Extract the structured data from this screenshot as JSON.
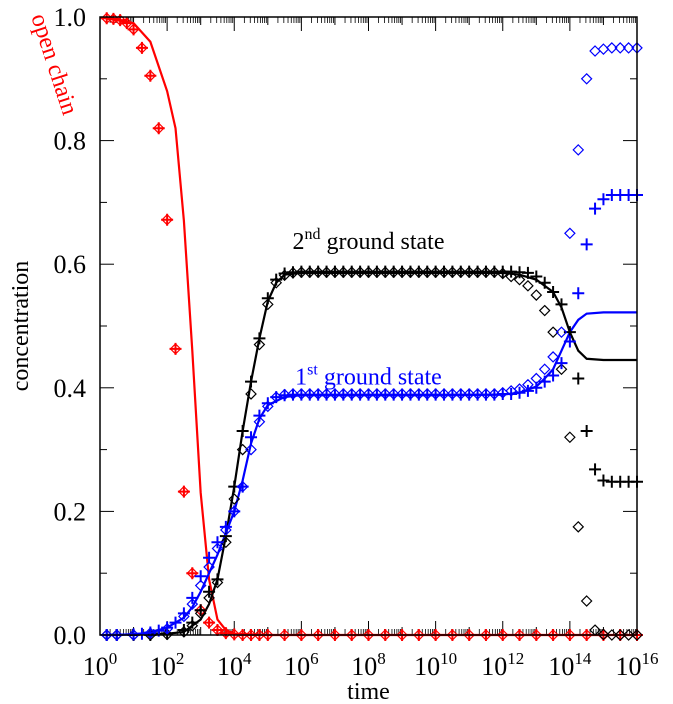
{
  "chart_data": {
    "type": "line",
    "title": "",
    "xlabel": "time",
    "ylabel": "concentration",
    "x_scale": "log",
    "xlim": [
      1,
      1e+16
    ],
    "ylim": [
      0,
      1.0
    ],
    "x_ticks": [
      {
        "base": "10",
        "exp": "0"
      },
      {
        "base": "10",
        "exp": "2"
      },
      {
        "base": "10",
        "exp": "4"
      },
      {
        "base": "10",
        "exp": "6"
      },
      {
        "base": "10",
        "exp": "8"
      },
      {
        "base": "10",
        "exp": "10"
      },
      {
        "base": "10",
        "exp": "12"
      },
      {
        "base": "10",
        "exp": "14"
      },
      {
        "base": "10",
        "exp": "16"
      }
    ],
    "y_ticks": [
      "0.0",
      "0.2",
      "0.4",
      "0.6",
      "0.8",
      "1.0"
    ],
    "y_tick_values": [
      0,
      0.2,
      0.4,
      0.6,
      0.8,
      1.0
    ],
    "grid": false,
    "annotations": [
      {
        "id": "open",
        "text": "open chain",
        "color": "#ff0000",
        "x": 300,
        "y": 0.9,
        "rotate": 72
      },
      {
        "id": "second",
        "pre": "2",
        "sup": "nd",
        "text": " ground state",
        "color": "#000000",
        "x": 100000000.0,
        "y": 0.625
      },
      {
        "id": "first",
        "pre": "1",
        "sup": "st",
        "text": " ground state",
        "color": "#0000ff",
        "x": 100000000.0,
        "y": 0.405
      }
    ],
    "series": [
      {
        "id": "open-line",
        "color": "#ff0000",
        "kind": "line",
        "x_log": [
          0.2,
          1,
          1.5,
          2,
          2.25,
          2.5,
          2.75,
          3,
          3.25,
          3.5,
          3.75,
          4,
          4.5,
          5,
          6,
          8,
          10,
          12,
          14,
          16
        ],
        "y": [
          0.998,
          0.99,
          0.96,
          0.88,
          0.82,
          0.67,
          0.46,
          0.23,
          0.09,
          0.025,
          0.008,
          0.002,
          0.001,
          0,
          0,
          0,
          0,
          0,
          0,
          0
        ]
      },
      {
        "id": "second-line",
        "color": "#000000",
        "kind": "line",
        "x_log": [
          0.2,
          2,
          2.5,
          3,
          3.25,
          3.5,
          3.75,
          4,
          4.25,
          4.5,
          4.75,
          5,
          5.25,
          5.5,
          6,
          8,
          10,
          12,
          12.5,
          13,
          13.5,
          13.75,
          14,
          14.25,
          14.5,
          15,
          16
        ],
        "y": [
          0,
          0.002,
          0.005,
          0.025,
          0.05,
          0.09,
          0.16,
          0.24,
          0.33,
          0.41,
          0.48,
          0.54,
          0.57,
          0.583,
          0.586,
          0.586,
          0.586,
          0.586,
          0.583,
          0.575,
          0.555,
          0.53,
          0.49,
          0.46,
          0.447,
          0.445,
          0.445
        ]
      },
      {
        "id": "first-line",
        "color": "#0000ff",
        "kind": "line",
        "x_log": [
          0.2,
          1,
          1.5,
          2,
          2.5,
          2.75,
          3,
          3.25,
          3.5,
          3.75,
          4,
          4.25,
          4.5,
          4.75,
          5,
          5.5,
          6,
          8,
          10,
          12,
          12.5,
          13,
          13.25,
          13.5,
          13.75,
          14,
          14.25,
          14.5,
          15,
          16
        ],
        "y": [
          0,
          0.001,
          0.004,
          0.012,
          0.028,
          0.045,
          0.07,
          0.1,
          0.13,
          0.165,
          0.2,
          0.25,
          0.31,
          0.35,
          0.372,
          0.385,
          0.388,
          0.388,
          0.388,
          0.389,
          0.392,
          0.402,
          0.415,
          0.43,
          0.46,
          0.49,
          0.51,
          0.52,
          0.522,
          0.522
        ]
      },
      {
        "id": "open-markers",
        "color": "#ff0000",
        "kind": "both",
        "x_log": [
          0.2,
          0.4,
          0.6,
          0.8,
          1,
          1.25,
          1.5,
          1.75,
          2,
          2.25,
          2.5,
          2.75,
          3,
          3.25,
          3.5,
          3.75,
          4,
          4.25,
          4.5,
          4.75,
          5,
          5.5,
          6,
          6.5,
          7,
          7.5,
          8,
          8.5,
          9,
          9.5,
          10,
          10.5,
          11,
          11.5,
          12,
          12.5,
          13,
          13.5,
          14,
          14.5,
          15,
          15.5,
          16
        ],
        "y": [
          0.998,
          0.997,
          0.995,
          0.99,
          0.98,
          0.95,
          0.905,
          0.82,
          0.672,
          0.463,
          0.232,
          0.1,
          0.04,
          0.02,
          0.008,
          0.003,
          0.001,
          0,
          0,
          0,
          0,
          0,
          0,
          0,
          0,
          0,
          0,
          0,
          0,
          0,
          0,
          0,
          0,
          0,
          0,
          0,
          0,
          0,
          0,
          0,
          0,
          0,
          0
        ]
      },
      {
        "id": "second-plus",
        "color": "#000000",
        "kind": "plus",
        "x_log": [
          0.2,
          0.5,
          1,
          1.5,
          2,
          2.5,
          2.75,
          3,
          3.25,
          3.5,
          3.75,
          4,
          4.25,
          4.5,
          4.75,
          5,
          5.25,
          5.5,
          5.75,
          6,
          6.25,
          6.5,
          6.75,
          7,
          7.25,
          7.5,
          7.75,
          8,
          8.25,
          8.5,
          8.75,
          9,
          9.25,
          9.5,
          9.75,
          10,
          10.25,
          10.5,
          10.75,
          11,
          11.25,
          11.5,
          11.75,
          12,
          12.25,
          12.5,
          12.75,
          13,
          13.25,
          13.5,
          13.75,
          14,
          14.25,
          14.5,
          14.75,
          15,
          15.25,
          15.5,
          15.75,
          16
        ],
        "y": [
          0,
          0,
          0,
          0,
          0.002,
          0.008,
          0.02,
          0.04,
          0.07,
          0.09,
          0.16,
          0.24,
          0.33,
          0.41,
          0.48,
          0.545,
          0.575,
          0.585,
          0.587,
          0.588,
          0.588,
          0.588,
          0.588,
          0.588,
          0.588,
          0.588,
          0.588,
          0.588,
          0.588,
          0.588,
          0.588,
          0.588,
          0.588,
          0.588,
          0.588,
          0.588,
          0.588,
          0.588,
          0.588,
          0.588,
          0.588,
          0.588,
          0.588,
          0.588,
          0.588,
          0.587,
          0.586,
          0.58,
          0.57,
          0.555,
          0.535,
          0.49,
          0.415,
          0.33,
          0.268,
          0.25,
          0.248,
          0.248,
          0.248,
          0.248
        ]
      },
      {
        "id": "second-diamond",
        "color": "#000000",
        "kind": "diamond",
        "x_log": [
          0.2,
          0.5,
          1,
          1.5,
          2,
          2.5,
          2.75,
          3,
          3.25,
          3.5,
          3.75,
          4,
          4.25,
          4.5,
          4.75,
          5,
          5.25,
          5.5,
          5.75,
          6,
          6.25,
          6.5,
          6.75,
          7,
          7.25,
          7.5,
          7.75,
          8,
          8.25,
          8.5,
          8.75,
          9,
          9.25,
          9.5,
          9.75,
          10,
          10.25,
          10.5,
          10.75,
          11,
          11.25,
          11.5,
          11.75,
          12,
          12.25,
          12.5,
          12.75,
          13,
          13.25,
          13.5,
          13.75,
          14,
          14.25,
          14.5,
          14.75,
          15,
          15.25,
          15.5,
          15.75,
          16
        ],
        "y": [
          0,
          0,
          0,
          0,
          0.001,
          0.005,
          0.015,
          0.035,
          0.06,
          0.085,
          0.15,
          0.22,
          0.3,
          0.39,
          0.47,
          0.535,
          0.57,
          0.582,
          0.586,
          0.587,
          0.587,
          0.587,
          0.587,
          0.587,
          0.587,
          0.587,
          0.587,
          0.587,
          0.587,
          0.587,
          0.587,
          0.587,
          0.587,
          0.587,
          0.587,
          0.587,
          0.587,
          0.587,
          0.587,
          0.587,
          0.587,
          0.587,
          0.587,
          0.585,
          0.58,
          0.575,
          0.565,
          0.55,
          0.525,
          0.49,
          0.43,
          0.32,
          0.175,
          0.055,
          0.008,
          0.001,
          0,
          0,
          0,
          0
        ]
      },
      {
        "id": "first-plus",
        "color": "#0000ff",
        "kind": "plus",
        "x_log": [
          0.2,
          0.5,
          1,
          1.25,
          1.5,
          1.75,
          2,
          2.25,
          2.5,
          2.75,
          3,
          3.25,
          3.5,
          3.75,
          4,
          4.25,
          4.5,
          4.75,
          5,
          5.25,
          5.5,
          5.75,
          6,
          6.25,
          6.5,
          6.75,
          7,
          7.25,
          7.5,
          7.75,
          8,
          8.25,
          8.5,
          8.75,
          9,
          9.25,
          9.5,
          9.75,
          10,
          10.25,
          10.5,
          10.75,
          11,
          11.25,
          11.5,
          11.75,
          12,
          12.25,
          12.5,
          12.75,
          13,
          13.25,
          13.5,
          13.75,
          14,
          14.25,
          14.5,
          14.75,
          15,
          15.25,
          15.5,
          15.75,
          16
        ],
        "y": [
          0,
          0,
          0.001,
          0.002,
          0.004,
          0.007,
          0.012,
          0.02,
          0.035,
          0.06,
          0.095,
          0.125,
          0.15,
          0.175,
          0.2,
          0.24,
          0.32,
          0.355,
          0.375,
          0.385,
          0.388,
          0.389,
          0.389,
          0.389,
          0.389,
          0.389,
          0.389,
          0.389,
          0.389,
          0.389,
          0.389,
          0.389,
          0.389,
          0.389,
          0.389,
          0.389,
          0.389,
          0.389,
          0.389,
          0.389,
          0.389,
          0.389,
          0.389,
          0.389,
          0.389,
          0.389,
          0.39,
          0.39,
          0.392,
          0.395,
          0.4,
          0.41,
          0.42,
          0.44,
          0.475,
          0.553,
          0.632,
          0.69,
          0.705,
          0.712,
          0.712,
          0.712,
          0.712
        ]
      },
      {
        "id": "first-diamond",
        "color": "#0000ff",
        "kind": "diamond",
        "x_log": [
          0.2,
          0.5,
          1,
          1.5,
          2,
          2.5,
          2.75,
          3,
          3.25,
          3.5,
          3.75,
          4,
          4.25,
          4.5,
          4.75,
          5,
          5.25,
          5.5,
          5.75,
          6,
          6.25,
          6.5,
          6.75,
          7,
          7.25,
          7.5,
          7.75,
          8,
          8.25,
          8.5,
          8.75,
          9,
          9.25,
          9.5,
          9.75,
          10,
          10.25,
          10.5,
          10.75,
          11,
          11.25,
          11.5,
          11.75,
          12,
          12.25,
          12.5,
          12.75,
          13,
          13.25,
          13.5,
          13.75,
          14,
          14.25,
          14.5,
          14.75,
          15,
          15.25,
          15.5,
          15.75,
          16
        ],
        "y": [
          0,
          0,
          0,
          0.003,
          0.01,
          0.03,
          0.05,
          0.08,
          0.11,
          0.14,
          0.17,
          0.2,
          0.24,
          0.3,
          0.345,
          0.37,
          0.385,
          0.389,
          0.39,
          0.39,
          0.39,
          0.39,
          0.39,
          0.39,
          0.39,
          0.39,
          0.39,
          0.39,
          0.39,
          0.39,
          0.39,
          0.39,
          0.39,
          0.39,
          0.39,
          0.39,
          0.39,
          0.39,
          0.39,
          0.39,
          0.39,
          0.39,
          0.39,
          0.392,
          0.395,
          0.398,
          0.405,
          0.415,
          0.43,
          0.45,
          0.49,
          0.65,
          0.785,
          0.9,
          0.945,
          0.948,
          0.95,
          0.95,
          0.95,
          0.95
        ]
      }
    ]
  }
}
